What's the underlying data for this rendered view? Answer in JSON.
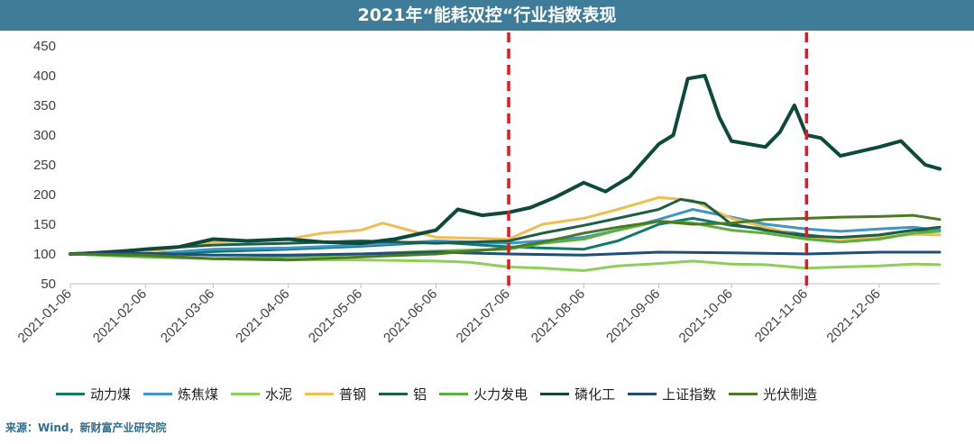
{
  "title": "2021年“能耗双控“行业指数表现",
  "source": "来源：Wind，新财富产业研究院",
  "chart_data": {
    "type": "line",
    "title": "2021年“能耗双控“行业指数表现",
    "xlabel": "",
    "ylabel": "",
    "ylim": [
      50,
      450
    ],
    "yticks": [
      50,
      100,
      150,
      200,
      250,
      300,
      350,
      400,
      450
    ],
    "xticks": [
      "2021-01-06",
      "2021-02-06",
      "2021-03-06",
      "2021-04-06",
      "2021-05-06",
      "2021-06-06",
      "2021-07-06",
      "2021-08-06",
      "2021-09-06",
      "2021-10-06",
      "2021-11-06",
      "2021-12-06"
    ],
    "xrange": [
      "2021-01-06",
      "2021-12-31"
    ],
    "grid": false,
    "legend_position": "bottom",
    "reference_lines": [
      {
        "x": "2021-07-06",
        "color": "#e8161f",
        "style": "dashed"
      },
      {
        "x": "2021-11-06",
        "color": "#e8161f",
        "style": "dashed"
      }
    ],
    "series": [
      {
        "name": "动力煤",
        "color": "#127a6a",
        "width": 3,
        "points": [
          [
            "2021-01-06",
            100
          ],
          [
            "2021-02-06",
            100
          ],
          [
            "2021-03-06",
            104
          ],
          [
            "2021-04-06",
            108
          ],
          [
            "2021-05-06",
            113
          ],
          [
            "2021-06-06",
            120
          ],
          [
            "2021-07-06",
            112
          ],
          [
            "2021-07-20",
            110
          ],
          [
            "2021-08-06",
            108
          ],
          [
            "2021-08-20",
            122
          ],
          [
            "2021-09-06",
            150
          ],
          [
            "2021-09-20",
            160
          ],
          [
            "2021-10-06",
            148
          ],
          [
            "2021-10-20",
            142
          ],
          [
            "2021-11-06",
            132
          ],
          [
            "2021-11-20",
            126
          ],
          [
            "2021-12-06",
            132
          ],
          [
            "2021-12-20",
            140
          ],
          [
            "2021-12-31",
            140
          ]
        ]
      },
      {
        "name": "炼焦煤",
        "color": "#3d95c8",
        "width": 3,
        "points": [
          [
            "2021-01-06",
            100
          ],
          [
            "2021-02-06",
            100
          ],
          [
            "2021-03-06",
            108
          ],
          [
            "2021-04-06",
            110
          ],
          [
            "2021-05-06",
            115
          ],
          [
            "2021-06-06",
            122
          ],
          [
            "2021-07-06",
            118
          ],
          [
            "2021-07-20",
            122
          ],
          [
            "2021-08-06",
            128
          ],
          [
            "2021-08-20",
            140
          ],
          [
            "2021-09-06",
            158
          ],
          [
            "2021-09-20",
            175
          ],
          [
            "2021-10-06",
            162
          ],
          [
            "2021-10-20",
            150
          ],
          [
            "2021-11-06",
            142
          ],
          [
            "2021-11-20",
            138
          ],
          [
            "2021-12-06",
            142
          ],
          [
            "2021-12-20",
            145
          ],
          [
            "2021-12-31",
            140
          ]
        ]
      },
      {
        "name": "水泥",
        "color": "#8ecf5a",
        "width": 3,
        "points": [
          [
            "2021-01-06",
            100
          ],
          [
            "2021-02-06",
            96
          ],
          [
            "2021-03-06",
            92
          ],
          [
            "2021-04-06",
            90
          ],
          [
            "2021-05-06",
            90
          ],
          [
            "2021-06-06",
            88
          ],
          [
            "2021-06-20",
            86
          ],
          [
            "2021-07-06",
            78
          ],
          [
            "2021-07-20",
            76
          ],
          [
            "2021-08-06",
            72
          ],
          [
            "2021-08-20",
            80
          ],
          [
            "2021-09-06",
            84
          ],
          [
            "2021-09-20",
            88
          ],
          [
            "2021-10-06",
            83
          ],
          [
            "2021-10-20",
            82
          ],
          [
            "2021-11-06",
            76
          ],
          [
            "2021-11-20",
            78
          ],
          [
            "2021-12-06",
            80
          ],
          [
            "2021-12-20",
            83
          ],
          [
            "2021-12-31",
            82
          ]
        ]
      },
      {
        "name": "普钢",
        "color": "#f0bd52",
        "width": 3,
        "points": [
          [
            "2021-01-06",
            100
          ],
          [
            "2021-02-06",
            102
          ],
          [
            "2021-03-06",
            120
          ],
          [
            "2021-04-06",
            125
          ],
          [
            "2021-04-20",
            135
          ],
          [
            "2021-05-06",
            140
          ],
          [
            "2021-05-15",
            152
          ],
          [
            "2021-06-06",
            128
          ],
          [
            "2021-07-06",
            125
          ],
          [
            "2021-07-20",
            150
          ],
          [
            "2021-08-06",
            160
          ],
          [
            "2021-08-20",
            175
          ],
          [
            "2021-09-06",
            195
          ],
          [
            "2021-09-20",
            190
          ],
          [
            "2021-10-06",
            160
          ],
          [
            "2021-10-20",
            145
          ],
          [
            "2021-11-06",
            128
          ],
          [
            "2021-11-20",
            125
          ],
          [
            "2021-12-06",
            128
          ],
          [
            "2021-12-20",
            133
          ],
          [
            "2021-12-31",
            132
          ]
        ]
      },
      {
        "name": "铝",
        "color": "#1c5e48",
        "width": 3,
        "points": [
          [
            "2021-01-06",
            100
          ],
          [
            "2021-02-06",
            108
          ],
          [
            "2021-03-06",
            115
          ],
          [
            "2021-04-06",
            118
          ],
          [
            "2021-05-06",
            122
          ],
          [
            "2021-06-06",
            118
          ],
          [
            "2021-07-06",
            122
          ],
          [
            "2021-07-20",
            135
          ],
          [
            "2021-08-06",
            148
          ],
          [
            "2021-08-20",
            160
          ],
          [
            "2021-09-06",
            175
          ],
          [
            "2021-09-15",
            192
          ],
          [
            "2021-09-25",
            185
          ],
          [
            "2021-10-06",
            150
          ],
          [
            "2021-10-20",
            140
          ],
          [
            "2021-11-06",
            130
          ],
          [
            "2021-11-20",
            128
          ],
          [
            "2021-12-06",
            132
          ],
          [
            "2021-12-20",
            140
          ],
          [
            "2021-12-31",
            145
          ]
        ]
      },
      {
        "name": "火力发电",
        "color": "#5fae42",
        "width": 3,
        "points": [
          [
            "2021-01-06",
            100
          ],
          [
            "2021-02-06",
            95
          ],
          [
            "2021-03-06",
            92
          ],
          [
            "2021-04-06",
            95
          ],
          [
            "2021-05-06",
            100
          ],
          [
            "2021-06-06",
            105
          ],
          [
            "2021-07-06",
            108
          ],
          [
            "2021-07-20",
            118
          ],
          [
            "2021-08-06",
            125
          ],
          [
            "2021-08-20",
            140
          ],
          [
            "2021-09-06",
            155
          ],
          [
            "2021-09-20",
            152
          ],
          [
            "2021-10-06",
            140
          ],
          [
            "2021-10-20",
            135
          ],
          [
            "2021-11-06",
            125
          ],
          [
            "2021-11-20",
            120
          ],
          [
            "2021-12-06",
            125
          ],
          [
            "2021-12-20",
            135
          ],
          [
            "2021-12-31",
            138
          ]
        ]
      },
      {
        "name": "磷化工",
        "color": "#0e4a3c",
        "width": 4,
        "points": [
          [
            "2021-01-06",
            100
          ],
          [
            "2021-01-20",
            102
          ],
          [
            "2021-02-06",
            108
          ],
          [
            "2021-02-20",
            112
          ],
          [
            "2021-03-06",
            125
          ],
          [
            "2021-03-20",
            122
          ],
          [
            "2021-04-06",
            125
          ],
          [
            "2021-04-20",
            120
          ],
          [
            "2021-05-06",
            118
          ],
          [
            "2021-05-20",
            125
          ],
          [
            "2021-06-06",
            140
          ],
          [
            "2021-06-15",
            175
          ],
          [
            "2021-06-25",
            165
          ],
          [
            "2021-07-06",
            170
          ],
          [
            "2021-07-15",
            178
          ],
          [
            "2021-07-25",
            195
          ],
          [
            "2021-08-06",
            220
          ],
          [
            "2021-08-15",
            205
          ],
          [
            "2021-08-25",
            230
          ],
          [
            "2021-09-06",
            285
          ],
          [
            "2021-09-12",
            300
          ],
          [
            "2021-09-18",
            395
          ],
          [
            "2021-09-25",
            400
          ],
          [
            "2021-10-01",
            330
          ],
          [
            "2021-10-06",
            290
          ],
          [
            "2021-10-20",
            280
          ],
          [
            "2021-10-26",
            305
          ],
          [
            "2021-11-01",
            350
          ],
          [
            "2021-11-06",
            300
          ],
          [
            "2021-11-12",
            295
          ],
          [
            "2021-11-20",
            265
          ],
          [
            "2021-12-06",
            280
          ],
          [
            "2021-12-15",
            290
          ],
          [
            "2021-12-25",
            250
          ],
          [
            "2021-12-31",
            243
          ]
        ]
      },
      {
        "name": "上证指数",
        "color": "#1f4e79",
        "width": 3,
        "points": [
          [
            "2021-01-06",
            100
          ],
          [
            "2021-02-06",
            101
          ],
          [
            "2021-03-06",
            98
          ],
          [
            "2021-04-06",
            98
          ],
          [
            "2021-05-06",
            100
          ],
          [
            "2021-06-06",
            103
          ],
          [
            "2021-07-06",
            100
          ],
          [
            "2021-08-06",
            98
          ],
          [
            "2021-09-06",
            103
          ],
          [
            "2021-10-06",
            102
          ],
          [
            "2021-11-06",
            100
          ],
          [
            "2021-12-06",
            103
          ],
          [
            "2021-12-31",
            103
          ]
        ]
      },
      {
        "name": "光伏制造",
        "color": "#4a7a23",
        "width": 3,
        "points": [
          [
            "2021-01-06",
            100
          ],
          [
            "2021-02-06",
            98
          ],
          [
            "2021-03-06",
            92
          ],
          [
            "2021-04-06",
            90
          ],
          [
            "2021-05-06",
            95
          ],
          [
            "2021-06-06",
            100
          ],
          [
            "2021-07-06",
            110
          ],
          [
            "2021-07-20",
            120
          ],
          [
            "2021-08-06",
            135
          ],
          [
            "2021-08-20",
            145
          ],
          [
            "2021-09-06",
            155
          ],
          [
            "2021-09-20",
            150
          ],
          [
            "2021-10-06",
            152
          ],
          [
            "2021-10-20",
            158
          ],
          [
            "2021-11-06",
            160
          ],
          [
            "2021-11-20",
            162
          ],
          [
            "2021-12-06",
            163
          ],
          [
            "2021-12-20",
            165
          ],
          [
            "2021-12-31",
            158
          ]
        ]
      }
    ]
  }
}
